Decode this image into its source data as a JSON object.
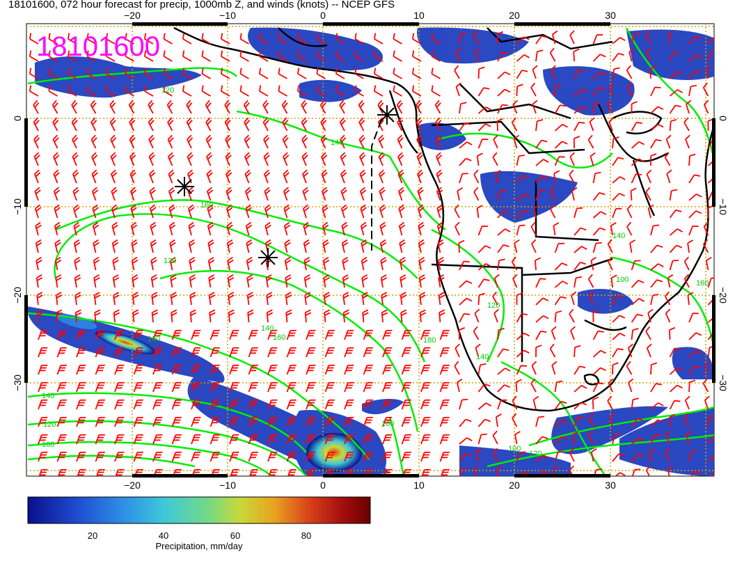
{
  "title": "18101600, 072 hour forecast for precip, 1000mb Z, and winds (knots) -- NCEP GFS",
  "stamp": "18101600",
  "axes": {
    "lon_ticks": [
      "−20",
      "−10",
      "0",
      "10",
      "20",
      "30"
    ],
    "lat_ticks": [
      "0",
      "−10",
      "−20",
      "−30"
    ]
  },
  "contour_labels": [
    "120",
    "140",
    "160",
    "120",
    "140",
    "160",
    "180",
    "160",
    "140",
    "120",
    "100",
    "160",
    "140",
    "120",
    "100",
    "140",
    "160",
    "100",
    "120"
  ],
  "colorbar": {
    "label": "Precipitation, mm/day",
    "ticks": [
      "20",
      "40",
      "60",
      "80"
    ],
    "colors": [
      "#0a0f8c",
      "#1f4fd1",
      "#2e8fe6",
      "#3ec9d8",
      "#6fd98a",
      "#c8d93a",
      "#e8a21f",
      "#d9421a",
      "#a30d0d",
      "#6b0000"
    ]
  },
  "colors": {
    "stamp": "#ff00ff",
    "wind_barbs": "#ff0000",
    "contours": "#00ee00",
    "coast": "#000000",
    "grid": "#d4a000"
  }
}
